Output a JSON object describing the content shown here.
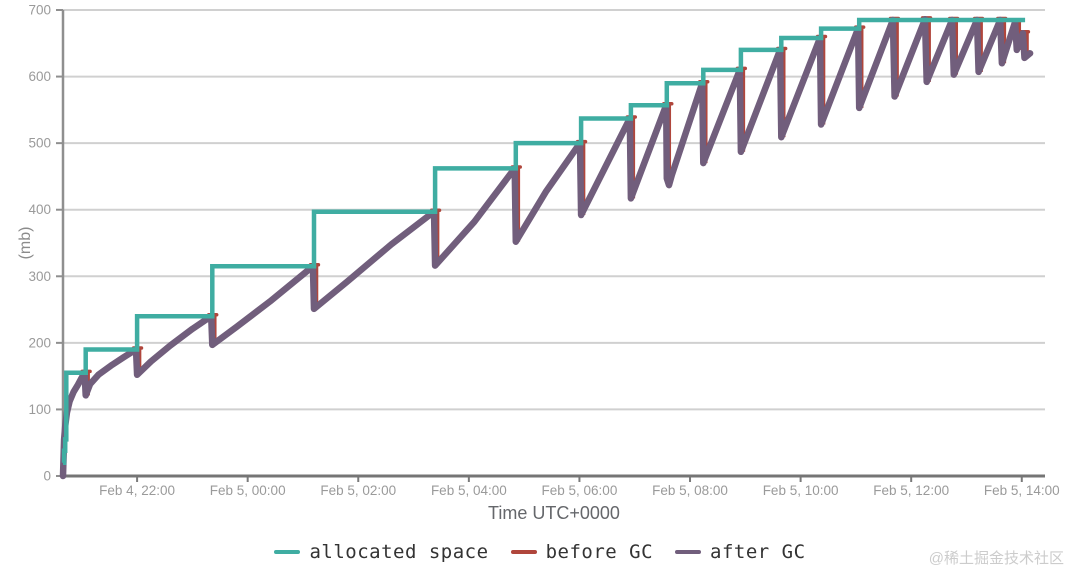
{
  "watermark": {
    "text": "@稀土掘金技术社区"
  },
  "chart_data": {
    "type": "line",
    "title": "",
    "xlabel": "Time UTC+0000",
    "ylabel": "(mb)",
    "x_unit_note": "hours since Feb 4, 20:00 UTC",
    "x_range": [
      0.66,
      18.42
    ],
    "y_range": [
      0,
      700
    ],
    "grid": true,
    "legend_position": "bottom",
    "x_ticks": [
      {
        "value": 2,
        "label": "Feb 4, 22:00"
      },
      {
        "value": 4,
        "label": "Feb 5, 00:00"
      },
      {
        "value": 6,
        "label": "Feb 5, 02:00"
      },
      {
        "value": 8,
        "label": "Feb 5, 04:00"
      },
      {
        "value": 10,
        "label": "Feb 5, 06:00"
      },
      {
        "value": 12,
        "label": "Feb 5, 08:00"
      },
      {
        "value": 14,
        "label": "Feb 5, 10:00"
      },
      {
        "value": 16,
        "label": "Feb 5, 12:00"
      },
      {
        "value": 18,
        "label": "Feb 5, 14:00"
      }
    ],
    "y_ticks": [
      {
        "value": 0,
        "label": "0"
      },
      {
        "value": 100,
        "label": "100"
      },
      {
        "value": 200,
        "label": "200"
      },
      {
        "value": 300,
        "label": "300"
      },
      {
        "value": 400,
        "label": "400"
      },
      {
        "value": 500,
        "label": "500"
      },
      {
        "value": 600,
        "label": "600"
      },
      {
        "value": 700,
        "label": "700"
      }
    ],
    "series": [
      {
        "name": "allocated space",
        "color": "#3fada2",
        "style": "step",
        "points": [
          [
            0.66,
            20
          ],
          [
            0.68,
            20
          ],
          [
            0.68,
            38
          ],
          [
            0.7,
            38
          ],
          [
            0.7,
            55
          ],
          [
            0.72,
            55
          ],
          [
            0.72,
            155
          ],
          [
            1.07,
            155
          ],
          [
            1.07,
            190
          ],
          [
            2.0,
            190
          ],
          [
            2.0,
            240
          ],
          [
            3.36,
            240
          ],
          [
            3.36,
            315
          ],
          [
            5.2,
            315
          ],
          [
            5.2,
            397
          ],
          [
            7.39,
            397
          ],
          [
            7.39,
            462
          ],
          [
            8.85,
            462
          ],
          [
            8.85,
            500
          ],
          [
            10.03,
            500
          ],
          [
            10.03,
            537
          ],
          [
            10.93,
            537
          ],
          [
            10.93,
            557
          ],
          [
            11.58,
            557
          ],
          [
            11.58,
            590
          ],
          [
            12.24,
            590
          ],
          [
            12.24,
            610
          ],
          [
            12.92,
            610
          ],
          [
            12.92,
            640
          ],
          [
            13.65,
            640
          ],
          [
            13.65,
            658
          ],
          [
            14.37,
            658
          ],
          [
            14.37,
            672
          ],
          [
            15.06,
            672
          ],
          [
            15.06,
            685
          ],
          [
            18.06,
            685
          ]
        ]
      },
      {
        "name": "before GC",
        "color": "#b0463c",
        "style": "peaks",
        "points": [
          [
            1.05,
            155
          ],
          [
            1.98,
            190
          ],
          [
            3.34,
            240
          ],
          [
            5.18,
            315
          ],
          [
            7.37,
            397
          ],
          [
            8.83,
            462
          ],
          [
            10.01,
            500
          ],
          [
            10.91,
            537
          ],
          [
            11.57,
            557
          ],
          [
            12.22,
            590
          ],
          [
            12.9,
            610
          ],
          [
            13.63,
            640
          ],
          [
            14.35,
            658
          ],
          [
            15.04,
            672
          ],
          [
            15.67,
            685
          ],
          [
            16.25,
            686
          ],
          [
            16.74,
            685
          ],
          [
            17.19,
            685
          ],
          [
            17.61,
            685
          ],
          [
            17.88,
            682
          ],
          [
            18.02,
            665
          ]
        ]
      },
      {
        "name": "after GC",
        "color": "#715e7c",
        "style": "sawtooth",
        "points": [
          [
            0.66,
            0
          ],
          [
            0.67,
            30
          ],
          [
            0.68,
            55
          ],
          [
            0.7,
            75
          ],
          [
            0.73,
            95
          ],
          [
            0.78,
            112
          ],
          [
            0.85,
            126
          ],
          [
            0.93,
            137
          ],
          [
            1.0,
            148
          ],
          [
            1.05,
            155
          ],
          [
            1.07,
            121
          ],
          [
            1.15,
            138
          ],
          [
            1.3,
            152
          ],
          [
            1.55,
            167
          ],
          [
            1.75,
            178
          ],
          [
            1.98,
            190
          ],
          [
            2.0,
            152
          ],
          [
            2.25,
            172
          ],
          [
            2.6,
            196
          ],
          [
            3.0,
            221
          ],
          [
            3.34,
            240
          ],
          [
            3.36,
            197
          ],
          [
            3.8,
            224
          ],
          [
            4.4,
            262
          ],
          [
            5.18,
            315
          ],
          [
            5.2,
            251
          ],
          [
            5.8,
            292
          ],
          [
            6.6,
            348
          ],
          [
            7.37,
            397
          ],
          [
            7.39,
            316
          ],
          [
            8.1,
            382
          ],
          [
            8.83,
            462
          ],
          [
            8.85,
            352
          ],
          [
            9.4,
            428
          ],
          [
            10.01,
            500
          ],
          [
            10.03,
            392
          ],
          [
            10.91,
            537
          ],
          [
            10.93,
            417
          ],
          [
            11.57,
            557
          ],
          [
            11.58,
            447
          ],
          [
            11.62,
            437
          ],
          [
            11.67,
            452
          ],
          [
            12.22,
            590
          ],
          [
            12.24,
            470
          ],
          [
            12.9,
            610
          ],
          [
            12.92,
            487
          ],
          [
            13.63,
            640
          ],
          [
            13.65,
            509
          ],
          [
            14.35,
            658
          ],
          [
            14.37,
            528
          ],
          [
            15.04,
            672
          ],
          [
            15.06,
            553
          ],
          [
            15.67,
            685
          ],
          [
            15.7,
            570
          ],
          [
            16.25,
            686
          ],
          [
            16.28,
            592
          ],
          [
            16.74,
            685
          ],
          [
            16.77,
            603
          ],
          [
            17.19,
            685
          ],
          [
            17.22,
            607
          ],
          [
            17.61,
            685
          ],
          [
            17.64,
            620
          ],
          [
            17.88,
            682
          ],
          [
            17.91,
            640
          ],
          [
            18.02,
            665
          ],
          [
            18.05,
            628
          ],
          [
            18.15,
            635
          ]
        ]
      }
    ]
  }
}
